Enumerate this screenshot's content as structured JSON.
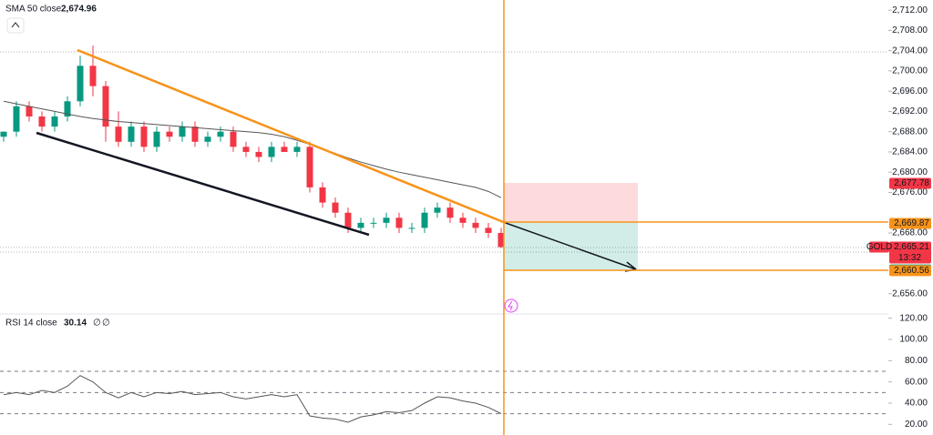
{
  "chart_data": [
    {
      "type": "candlestick",
      "up_color": "#089981",
      "down_color": "#f23645",
      "open": [
        2687,
        2688,
        2693,
        2691,
        2689,
        2691,
        2694,
        2701,
        2697,
        2689,
        2686,
        2689,
        2685,
        2688,
        2687,
        2689,
        2686,
        2687,
        2688,
        2685,
        2684,
        2683,
        2685,
        2684,
        2685,
        2677,
        2674,
        2672,
        2669,
        2670,
        2670,
        2671,
        2669,
        2669,
        2672,
        2673,
        2671,
        2670,
        2669,
        2668
      ],
      "high": [
        2688,
        2694,
        2694,
        2692,
        2692,
        2695,
        2703,
        2705,
        2698,
        2692,
        2690,
        2690,
        2689,
        2689,
        2690,
        2690,
        2688,
        2689,
        2689,
        2686,
        2685,
        2686,
        2686,
        2686,
        2686,
        2678,
        2675,
        2673,
        2671,
        2671,
        2672,
        2672,
        2670,
        2673,
        2674,
        2674,
        2672,
        2671,
        2670,
        2669
      ],
      "low": [
        2686,
        2687,
        2690,
        2688,
        2688,
        2690,
        2693,
        2695,
        2686,
        2685,
        2685,
        2684,
        2684,
        2686,
        2686,
        2685,
        2685,
        2686,
        2684,
        2683,
        2682,
        2682,
        2684,
        2683,
        2676,
        2673,
        2671,
        2668,
        2668,
        2669,
        2669,
        2668,
        2668,
        2668,
        2671,
        2670,
        2669,
        2668,
        2667,
        2665
      ],
      "close": [
        2688,
        2693,
        2691,
        2689,
        2691,
        2694,
        2701,
        2697,
        2689,
        2686,
        2689,
        2685,
        2688,
        2687,
        2689,
        2686,
        2687,
        2688,
        2685,
        2684,
        2683,
        2685,
        2684,
        2685,
        2677,
        2674,
        2672,
        2669,
        2670,
        2670,
        2671,
        2669,
        2669,
        2672,
        2673,
        2671,
        2670,
        2669,
        2668,
        2665.21
      ],
      "sma": {
        "name": "SMA 50 close",
        "color": "#555555",
        "last_label": "2,674.96",
        "values": [
          2694,
          2693.5,
          2693,
          2692.5,
          2692,
          2691.5,
          2691,
          2690.6,
          2690.3,
          2690,
          2689.8,
          2689.6,
          2689.4,
          2689.2,
          2689,
          2688.8,
          2688.6,
          2688.4,
          2688.2,
          2688,
          2687.8,
          2687.5,
          2687,
          2686.3,
          2685.5,
          2684.6,
          2683.7,
          2682.8,
          2682,
          2681.3,
          2680.6,
          2680,
          2679.5,
          2679,
          2678.5,
          2678,
          2677.5,
          2677,
          2676.2,
          2674.96
        ]
      },
      "ylim": [
        2652,
        2714
      ],
      "yticks": [
        {
          "value": 2712,
          "label": "2,712.00"
        },
        {
          "value": 2708,
          "label": "2,708.00"
        },
        {
          "value": 2704,
          "label": "2,704.00"
        },
        {
          "value": 2700,
          "label": "2,700.00"
        },
        {
          "value": 2696,
          "label": "2,696.00"
        },
        {
          "value": 2692,
          "label": "2,692.00"
        },
        {
          "value": 2688,
          "label": "2,688.00"
        },
        {
          "value": 2684,
          "label": "2,684.00"
        },
        {
          "value": 2680,
          "label": "2,680.00"
        },
        {
          "value": 2676,
          "label": "2,676.00"
        },
        {
          "value": 2668,
          "label": "2,668.00"
        },
        {
          "value": 2656,
          "label": "2,656.00"
        }
      ],
      "price_labels": [
        {
          "value": 2677.78,
          "label": "2,677.78",
          "color": "#f23645"
        },
        {
          "value": 2669.87,
          "label": "2,669.87",
          "color": "#787b86"
        },
        {
          "value": 2669.87,
          "label": "2,669.87",
          "color": "#f7931a"
        },
        {
          "value": 2665.21,
          "label": "2,665.21",
          "color": "#f23645",
          "symbol": "GOLD",
          "timer": "13:32"
        },
        {
          "value": 2660.7,
          "label": "2,660.70",
          "color": "#089981"
        },
        {
          "value": 2660.56,
          "label": "2,660.56",
          "color": "#f7931a"
        }
      ]
    },
    {
      "type": "line",
      "name": "RSI 14 close",
      "color": "#555555",
      "value_label": "30.14",
      "extra": [
        "∅",
        "∅"
      ],
      "values": [
        48,
        50,
        48,
        52,
        50,
        56,
        66,
        60,
        50,
        45,
        50,
        46,
        50,
        49,
        51,
        48,
        49,
        50,
        46,
        44,
        46,
        48,
        46,
        48,
        28,
        26,
        25,
        22,
        27,
        29,
        32,
        31,
        33,
        40,
        46,
        45,
        42,
        40,
        36,
        30.14
      ],
      "levels": [
        70,
        50,
        30
      ],
      "ylim": [
        10,
        124
      ],
      "yticks": [
        {
          "value": 120,
          "label": "120.00"
        },
        {
          "value": 100,
          "label": "100.00"
        },
        {
          "value": 80,
          "label": "80.00"
        },
        {
          "value": 60,
          "label": "60.00"
        },
        {
          "value": 40,
          "label": "40.00"
        },
        {
          "value": 20,
          "label": "20.00"
        }
      ]
    }
  ]
}
